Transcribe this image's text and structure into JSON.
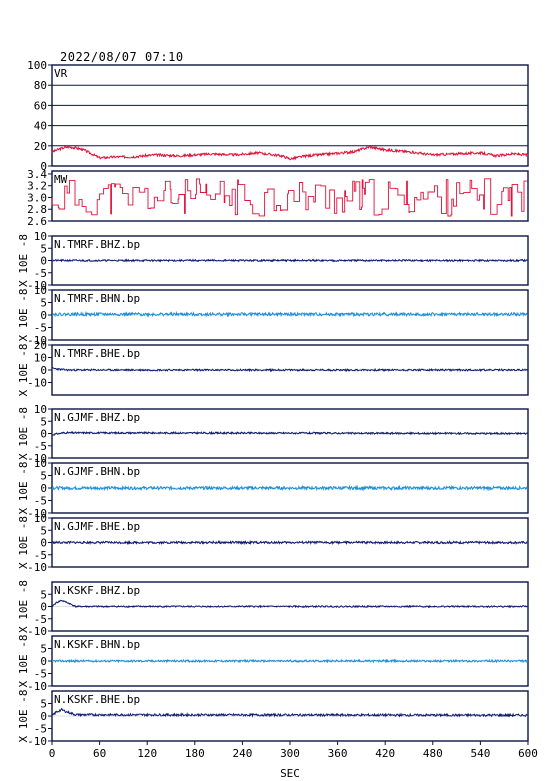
{
  "header": {
    "timestamp": "2022/08/07 07:10"
  },
  "colors": {
    "frame": "#0b1440",
    "red": "#e0103a",
    "dark": "#0f1a6e",
    "light": "#1a8ed8"
  },
  "chart_data": {
    "type": "line",
    "x_axis": {
      "label": "SEC",
      "range": [
        0,
        600
      ],
      "ticks": [
        "0",
        "60",
        "120",
        "180",
        "240",
        "300",
        "360",
        "420",
        "480",
        "540",
        "600"
      ]
    },
    "panels": [
      {
        "name": "VR",
        "unit": "",
        "range": [
          0,
          100
        ],
        "color": "red",
        "ticks": [
          {
            "v": 0,
            "t": "0"
          },
          {
            "v": 20,
            "t": "20"
          },
          {
            "v": 40,
            "t": "40"
          },
          {
            "v": 60,
            "t": "60"
          },
          {
            "v": 80,
            "t": "80"
          },
          {
            "v": 100,
            "t": "100"
          }
        ],
        "grid": [
          20,
          40,
          60,
          80
        ],
        "profile": [
          [
            0,
            14
          ],
          [
            10,
            17
          ],
          [
            20,
            19
          ],
          [
            30,
            18
          ],
          [
            40,
            16
          ],
          [
            50,
            12
          ],
          [
            60,
            8
          ],
          [
            80,
            9
          ],
          [
            100,
            9
          ],
          [
            130,
            11
          ],
          [
            160,
            10
          ],
          [
            200,
            12
          ],
          [
            230,
            11
          ],
          [
            260,
            13
          ],
          [
            290,
            10
          ],
          [
            300,
            7
          ],
          [
            320,
            10
          ],
          [
            350,
            12
          ],
          [
            380,
            14
          ],
          [
            400,
            19
          ],
          [
            420,
            16
          ],
          [
            450,
            14
          ],
          [
            480,
            11
          ],
          [
            510,
            12
          ],
          [
            540,
            13
          ],
          [
            560,
            10
          ],
          [
            580,
            12
          ],
          [
            600,
            11
          ]
        ],
        "noise": 1.2,
        "seed": 3
      },
      {
        "name": "MW",
        "unit": "",
        "range": [
          2.6,
          3.45
        ],
        "color": "red",
        "ticks": [
          {
            "v": 2.6,
            "t": "2.6"
          },
          {
            "v": 2.8,
            "t": "2.8"
          },
          {
            "v": 3.0,
            "t": "3.0"
          },
          {
            "v": 3.2,
            "t": "3.2"
          },
          {
            "v": 3.4,
            "t": "3.4"
          }
        ],
        "grid": [],
        "steps": true,
        "mean": 3.0,
        "amp": 0.32,
        "seed": 11
      },
      {
        "name": "N.TMRF.BHZ.bp",
        "unit": "X 10E -8",
        "range": [
          -10,
          10
        ],
        "color": "dark",
        "ticks": [
          {
            "v": -10,
            "t": "-10"
          },
          {
            "v": -5,
            "t": "-5"
          },
          {
            "v": 0,
            "t": "0"
          },
          {
            "v": 5,
            "t": "5"
          },
          {
            "v": 10,
            "t": "10"
          }
        ],
        "profile": [
          [
            0,
            0
          ],
          [
            600,
            0
          ]
        ],
        "noise": 0.35,
        "seed": 21
      },
      {
        "name": "N.TMRF.BHN.bp",
        "unit": "X 10E -8",
        "range": [
          -10,
          10
        ],
        "color": "light",
        "ticks": [
          {
            "v": -10,
            "t": "-10"
          },
          {
            "v": -5,
            "t": "-5"
          },
          {
            "v": 0,
            "t": "0"
          },
          {
            "v": 5,
            "t": "5"
          },
          {
            "v": 10,
            "t": "10"
          }
        ],
        "profile": [
          [
            0,
            0.3
          ],
          [
            600,
            0.3
          ]
        ],
        "noise": 0.6,
        "seed": 22
      },
      {
        "name": "N.TMRF.BHE.bp",
        "unit": "X 10E -8",
        "range": [
          -20,
          20
        ],
        "color": "dark",
        "ticks": [
          {
            "v": -10,
            "t": "-10"
          },
          {
            "v": 0,
            "t": "0"
          },
          {
            "v": 10,
            "t": "10"
          },
          {
            "v": 20,
            "t": "20"
          }
        ],
        "profile": [
          [
            0,
            1.5
          ],
          [
            10,
            0.5
          ],
          [
            20,
            0
          ],
          [
            600,
            0
          ]
        ],
        "noise": 0.7,
        "seed": 23
      },
      {
        "name": "N.GJMF.BHZ.bp",
        "unit": "X 10E -8",
        "range": [
          -10,
          10
        ],
        "color": "dark",
        "ticks": [
          {
            "v": -10,
            "t": "-10"
          },
          {
            "v": -5,
            "t": "-5"
          },
          {
            "v": 0,
            "t": "0"
          },
          {
            "v": 5,
            "t": "5"
          },
          {
            "v": 10,
            "t": "10"
          }
        ],
        "profile": [
          [
            0,
            -0.5
          ],
          [
            15,
            0.3
          ],
          [
            600,
            0
          ]
        ],
        "noise": 0.35,
        "seed": 31
      },
      {
        "name": "N.GJMF.BHN.bp",
        "unit": "X 10E -8",
        "range": [
          -10,
          10
        ],
        "color": "light",
        "ticks": [
          {
            "v": -10,
            "t": "-10"
          },
          {
            "v": -5,
            "t": "-5"
          },
          {
            "v": 0,
            "t": "0"
          },
          {
            "v": 5,
            "t": "5"
          },
          {
            "v": 10,
            "t": "10"
          }
        ],
        "profile": [
          [
            0,
            0
          ],
          [
            600,
            0
          ]
        ],
        "noise": 0.6,
        "seed": 32
      },
      {
        "name": "N.GJMF.BHE.bp",
        "unit": "X 10E -8",
        "range": [
          -10,
          10
        ],
        "color": "dark",
        "ticks": [
          {
            "v": -10,
            "t": "-10"
          },
          {
            "v": -5,
            "t": "-5"
          },
          {
            "v": 0,
            "t": "0"
          },
          {
            "v": 5,
            "t": "5"
          },
          {
            "v": 10,
            "t": "10"
          }
        ],
        "profile": [
          [
            0,
            0
          ],
          [
            600,
            0
          ]
        ],
        "noise": 0.45,
        "seed": 33
      },
      {
        "name": "N.KSKF.BHZ.bp",
        "unit": "X 10E -8",
        "range": [
          -10,
          10
        ],
        "color": "dark",
        "ticks": [
          {
            "v": -10,
            "t": "-10"
          },
          {
            "v": -5,
            "t": "-5"
          },
          {
            "v": 0,
            "t": "0"
          },
          {
            "v": 5,
            "t": "5"
          }
        ],
        "profile": [
          [
            0,
            0
          ],
          [
            5,
            1.5
          ],
          [
            12,
            2.5
          ],
          [
            20,
            1.5
          ],
          [
            30,
            0
          ],
          [
            600,
            0
          ]
        ],
        "noise": 0.3,
        "seed": 41
      },
      {
        "name": "N.KSKF.BHN.bp",
        "unit": "X 10E -8",
        "range": [
          -10,
          10
        ],
        "color": "light",
        "ticks": [
          {
            "v": -10,
            "t": "-10"
          },
          {
            "v": -5,
            "t": "-5"
          },
          {
            "v": 0,
            "t": "0"
          },
          {
            "v": 5,
            "t": "5"
          }
        ],
        "profile": [
          [
            0,
            0
          ],
          [
            600,
            0
          ]
        ],
        "noise": 0.4,
        "seed": 42
      },
      {
        "name": "N.KSKF.BHE.bp",
        "unit": "X 10E -8",
        "range": [
          -10,
          10
        ],
        "color": "dark",
        "ticks": [
          {
            "v": -10,
            "t": "-10"
          },
          {
            "v": -5,
            "t": "-5"
          },
          {
            "v": 0,
            "t": "0"
          },
          {
            "v": 5,
            "t": "5"
          }
        ],
        "profile": [
          [
            0,
            0
          ],
          [
            5,
            1.5
          ],
          [
            12,
            2.5
          ],
          [
            20,
            1.5
          ],
          [
            30,
            0.5
          ],
          [
            600,
            0.3
          ]
        ],
        "noise": 0.45,
        "seed": 43
      }
    ]
  }
}
